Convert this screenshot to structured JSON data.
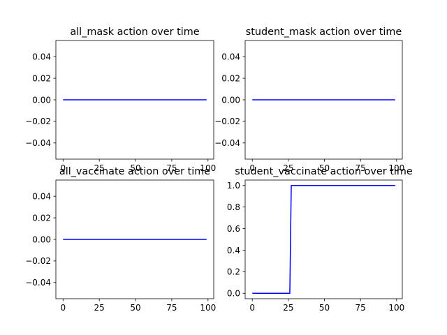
{
  "chart_data": [
    {
      "type": "line",
      "title": "all_mask action over time",
      "xlabel": "",
      "ylabel": "",
      "xlim": [
        -4.95,
        103.95
      ],
      "ylim": [
        -0.055,
        0.055
      ],
      "xticks": [
        0,
        25,
        50,
        75,
        100
      ],
      "yticks": [
        -0.04,
        -0.02,
        0.0,
        0.02,
        0.04
      ],
      "xtick_labels": [
        "0",
        "25",
        "50",
        "75",
        "100"
      ],
      "ytick_labels": [
        "−0.04",
        "−0.02",
        "0.00",
        "0.02",
        "0.04"
      ],
      "grid": false,
      "series": [
        {
          "color": "#0000ff",
          "x": [
            0,
            99
          ],
          "y": [
            0,
            0
          ]
        }
      ]
    },
    {
      "type": "line",
      "title": "student_mask action over time",
      "xlabel": "",
      "ylabel": "",
      "xlim": [
        -4.95,
        103.95
      ],
      "ylim": [
        -0.055,
        0.055
      ],
      "xticks": [
        0,
        25,
        50,
        75,
        100
      ],
      "yticks": [
        -0.04,
        -0.02,
        0.0,
        0.02,
        0.04
      ],
      "xtick_labels": [
        "0",
        "25",
        "50",
        "75",
        "100"
      ],
      "ytick_labels": [
        "−0.04",
        "−0.02",
        "0.00",
        "0.02",
        "0.04"
      ],
      "grid": false,
      "series": [
        {
          "color": "#0000ff",
          "x": [
            0,
            99
          ],
          "y": [
            0,
            0
          ]
        }
      ]
    },
    {
      "type": "line",
      "title": "all_vaccinate action over time",
      "xlabel": "",
      "ylabel": "",
      "xlim": [
        -4.95,
        103.95
      ],
      "ylim": [
        -0.055,
        0.055
      ],
      "xticks": [
        0,
        25,
        50,
        75,
        100
      ],
      "yticks": [
        -0.04,
        -0.02,
        0.0,
        0.02,
        0.04
      ],
      "xtick_labels": [
        "0",
        "25",
        "50",
        "75",
        "100"
      ],
      "ytick_labels": [
        "−0.04",
        "−0.02",
        "0.00",
        "0.02",
        "0.04"
      ],
      "grid": false,
      "series": [
        {
          "color": "#0000ff",
          "x": [
            0,
            99
          ],
          "y": [
            0,
            0
          ]
        }
      ]
    },
    {
      "type": "line",
      "title": "student_vaccinate action over time",
      "xlabel": "",
      "ylabel": "",
      "xlim": [
        -4.95,
        103.95
      ],
      "ylim": [
        -0.05,
        1.05
      ],
      "xticks": [
        0,
        25,
        50,
        75,
        100
      ],
      "yticks": [
        0.0,
        0.2,
        0.4,
        0.6,
        0.8,
        1.0
      ],
      "xtick_labels": [
        "0",
        "25",
        "50",
        "75",
        "100"
      ],
      "ytick_labels": [
        "0.0",
        "0.2",
        "0.4",
        "0.6",
        "0.8",
        "1.0"
      ],
      "grid": false,
      "series": [
        {
          "color": "#0000ff",
          "x": [
            0,
            26,
            27,
            99
          ],
          "y": [
            0,
            0,
            1,
            1
          ]
        }
      ]
    }
  ]
}
